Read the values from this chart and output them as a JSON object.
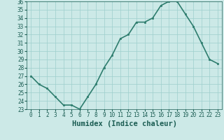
{
  "title": "",
  "xlabel": "Humidex (Indice chaleur)",
  "ylabel": "",
  "x_values": [
    0,
    1,
    2,
    3,
    4,
    5,
    6,
    7,
    8,
    9,
    10,
    11,
    12,
    13,
    14,
    15,
    16,
    17,
    18,
    19,
    20,
    21,
    22,
    23
  ],
  "y_values": [
    27,
    26,
    25.5,
    24.5,
    23.5,
    23.5,
    23,
    24.5,
    26,
    28,
    29.5,
    31.5,
    32,
    33.5,
    33.5,
    34,
    35.5,
    36,
    36,
    34.5,
    33,
    31,
    29,
    28.5
  ],
  "ylim": [
    23,
    36
  ],
  "xlim": [
    -0.5,
    23.5
  ],
  "y_ticks": [
    23,
    24,
    25,
    26,
    27,
    28,
    29,
    30,
    31,
    32,
    33,
    34,
    35,
    36
  ],
  "x_ticks": [
    0,
    1,
    2,
    3,
    4,
    5,
    6,
    7,
    8,
    9,
    10,
    11,
    12,
    13,
    14,
    15,
    16,
    17,
    18,
    19,
    20,
    21,
    22,
    23
  ],
  "line_color": "#2e7d6e",
  "marker_color": "#2e7d6e",
  "bg_color": "#cce9e7",
  "grid_color": "#9dcfcc",
  "axis_label_color": "#1a5c52",
  "tick_label_color": "#1a5c52",
  "marker": "s",
  "marker_size": 2,
  "line_width": 1.2,
  "xlabel_fontsize": 7.5,
  "tick_fontsize": 5.5
}
